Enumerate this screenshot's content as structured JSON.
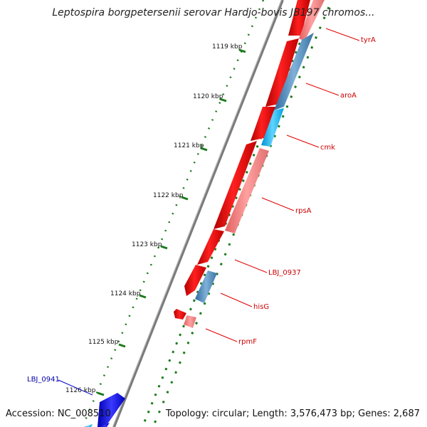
{
  "title": "Leptospira borgpetersenii serovar Hardjo-bovis JB197 chromos...",
  "accession": "Accession: NC_008510",
  "topology": "Topology: circular; Length: 3,576,473 bp; Genes: 2,687",
  "colors": {
    "forward_cds": "#ff0000",
    "forward_light": "#ff8080",
    "reverse_cds": "#4a82b4",
    "reverse_bright": "#1aa4e6",
    "reverse_dark": "#1a1adb",
    "label_red": "#cc0000",
    "label_blue": "#0000aa",
    "gc_ticks": "#1a7a1a",
    "backbone": "#808080"
  },
  "ticks": [
    {
      "label": "1119 kbp"
    },
    {
      "label": "1120 kbp"
    },
    {
      "label": "1121 kbp"
    },
    {
      "label": "1122 kbp"
    },
    {
      "label": "1123 kbp"
    },
    {
      "label": "1124 kbp"
    },
    {
      "label": "1125 kbp"
    },
    {
      "label": "1126 kbp"
    }
  ],
  "gene_labels": [
    {
      "name": "tyrA",
      "color": "red"
    },
    {
      "name": "aroA",
      "color": "red"
    },
    {
      "name": "cmk",
      "color": "red"
    },
    {
      "name": "rpsA",
      "color": "red"
    },
    {
      "name": "LBJ_0937",
      "color": "red"
    },
    {
      "name": "hisG",
      "color": "red"
    },
    {
      "name": "rpmF",
      "color": "red"
    },
    {
      "name": "LBJ_0941",
      "color": "blue"
    }
  ]
}
